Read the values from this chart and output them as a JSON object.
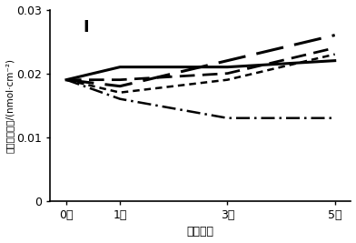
{
  "title": "I",
  "xlabel": "驱炼次数",
  "ylabel": "可溶性糖含量/(nmol·cm⁻²)",
  "x_ticks": [
    0,
    1,
    3,
    5
  ],
  "x_tick_labels": [
    "0次",
    "1次",
    "3次",
    "5次"
  ],
  "ylim": [
    0,
    0.03
  ],
  "yticks": [
    0,
    0.01,
    0.02,
    0.03
  ],
  "ytick_labels": [
    "0",
    "0.01",
    "0.02",
    "0.03"
  ],
  "lines": [
    {
      "y": [
        0.019,
        0.021,
        0.021,
        0.022
      ],
      "linestyle": "solid",
      "linewidth": 2.2,
      "color": "#000000"
    },
    {
      "y": [
        0.019,
        0.018,
        0.022,
        0.026
      ],
      "linewidth": 2.2,
      "color": "#000000",
      "dashes": [
        10,
        4
      ]
    },
    {
      "y": [
        0.019,
        0.019,
        0.02,
        0.024
      ],
      "linewidth": 2.0,
      "color": "#000000",
      "dashes": [
        6,
        3
      ]
    },
    {
      "y": [
        0.019,
        0.017,
        0.019,
        0.023
      ],
      "linewidth": 1.8,
      "color": "#000000",
      "dashes": [
        3,
        2
      ]
    },
    {
      "y": [
        0.019,
        0.016,
        0.013,
        0.013
      ],
      "linewidth": 1.8,
      "color": "#000000",
      "dashes": [
        6,
        2,
        1,
        2
      ]
    }
  ],
  "background_color": "#ffffff",
  "title_fontsize": 13,
  "label_fontsize": 9,
  "tick_fontsize": 9
}
